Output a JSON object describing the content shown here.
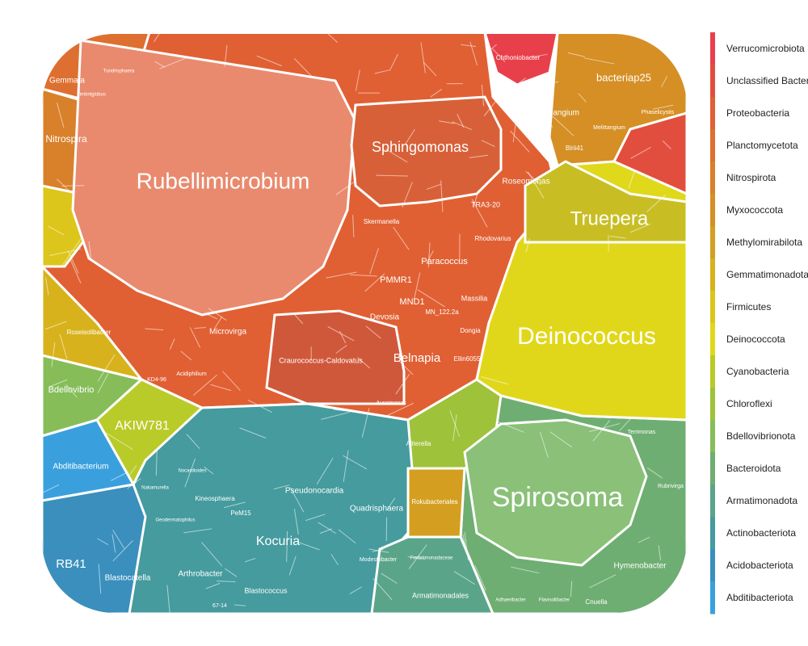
{
  "chart_data": {
    "type": "voronoi-treemap",
    "title": "",
    "phyla": [
      {
        "name": "Verrucomicrobiota",
        "color": "#e8404b"
      },
      {
        "name": "Unclassified Bacteria",
        "color": "#e24e3e"
      },
      {
        "name": "Proteobacteria",
        "color": "#e06033"
      },
      {
        "name": "Planctomycetota",
        "color": "#dd7030"
      },
      {
        "name": "Nitrospirota",
        "color": "#d9802a"
      },
      {
        "name": "Myxococcota",
        "color": "#d58f25"
      },
      {
        "name": "Methylomirabilota",
        "color": "#d49f20"
      },
      {
        "name": "Gemmatimonadota",
        "color": "#d8b21c"
      },
      {
        "name": "Firmicutes",
        "color": "#ddc61b"
      },
      {
        "name": "Deinococcota",
        "color": "#e0d81a"
      },
      {
        "name": "Cyanobacteria",
        "color": "#b9cb29"
      },
      {
        "name": "Chloroflexi",
        "color": "#9ec23a"
      },
      {
        "name": "Bdellovibrionota",
        "color": "#86bd59"
      },
      {
        "name": "Bacteroidota",
        "color": "#6fae72"
      },
      {
        "name": "Armatimonadota",
        "color": "#5aa58a"
      },
      {
        "name": "Actinobacteriota",
        "color": "#459b9e"
      },
      {
        "name": "Acidobacteriota",
        "color": "#3a8fbd"
      },
      {
        "name": "Abditibacteriota",
        "color": "#3aa0dd"
      }
    ],
    "labels": [
      {
        "text": "Rubellimicrobium",
        "size": 28
      },
      {
        "text": "Deinococcus",
        "size": 30
      },
      {
        "text": "Spirosoma",
        "size": 34
      },
      {
        "text": "Truepera",
        "size": 24
      },
      {
        "text": "Sphingomonas",
        "size": 18
      },
      {
        "text": "Kocuria",
        "size": 16
      },
      {
        "text": "AKIW781",
        "size": 16
      },
      {
        "text": "Belnapia",
        "size": 15
      },
      {
        "text": "bacteriap25",
        "size": 13
      },
      {
        "text": "Nitrospira",
        "size": 12
      },
      {
        "text": "RB41",
        "size": 15
      },
      {
        "text": "Bdellovibrio",
        "size": 11
      },
      {
        "text": "Abditibacterium",
        "size": 10
      },
      {
        "text": "Blastocatella",
        "size": 10
      },
      {
        "text": "Pseudonocardia",
        "size": 10
      },
      {
        "text": "Quadrisphaera",
        "size": 10
      },
      {
        "text": "Arthrobacter",
        "size": 10
      },
      {
        "text": "Blastococcus",
        "size": 9
      },
      {
        "text": "Paracoccus",
        "size": 11
      },
      {
        "text": "PMMR1",
        "size": 11
      },
      {
        "text": "MND1",
        "size": 11
      },
      {
        "text": "Devosia",
        "size": 10
      },
      {
        "text": "Microvirga",
        "size": 10
      },
      {
        "text": "Craurococcus-Caldovatus",
        "size": 9
      },
      {
        "text": "Roseomonas",
        "size": 10
      },
      {
        "text": "TRA3-20",
        "size": 9
      },
      {
        "text": "Massilia",
        "size": 9
      },
      {
        "text": "Dongia",
        "size": 8
      },
      {
        "text": "Ellin6055",
        "size": 8
      },
      {
        "text": "MN_122.2a",
        "size": 8
      },
      {
        "text": "Rhodovarius",
        "size": 8
      },
      {
        "text": "Skermanella",
        "size": 8
      },
      {
        "text": "Haliangium",
        "size": 10
      },
      {
        "text": "Chthoniobacter",
        "size": 8
      },
      {
        "text": "Gemmata",
        "size": 10
      },
      {
        "text": "Melittangium",
        "size": 7
      },
      {
        "text": "Blrii41",
        "size": 8
      },
      {
        "text": "Phaselicystis",
        "size": 7
      },
      {
        "text": "Hymenobacter",
        "size": 10
      },
      {
        "text": "Armatimonadales",
        "size": 9
      },
      {
        "text": "Rokubacteriales",
        "size": 8
      },
      {
        "text": "Roseisolibacter",
        "size": 8
      },
      {
        "text": "Aliterella",
        "size": 8
      },
      {
        "text": "Kineosphaera",
        "size": 8
      },
      {
        "text": "PeM15",
        "size": 8
      },
      {
        "text": "Modestobacter",
        "size": 7
      },
      {
        "text": "Nocardioides",
        "size": 6
      },
      {
        "text": "Acidiphilium",
        "size": 7
      },
      {
        "text": "Aureimonas",
        "size": 7
      },
      {
        "text": "Cnuella",
        "size": 8
      },
      {
        "text": "Terrimonas",
        "size": 7
      },
      {
        "text": "Rubrivirga",
        "size": 7
      },
      {
        "text": "KD4-96",
        "size": 7
      },
      {
        "text": "Geodermatophilus",
        "size": 6
      },
      {
        "text": "Nakamurella",
        "size": 6
      },
      {
        "text": "67-14",
        "size": 7
      },
      {
        "text": "Fimbriimonadaceae",
        "size": 6
      },
      {
        "text": "Adhaeribacter",
        "size": 6
      },
      {
        "text": "Flavisolibacter",
        "size": 6
      },
      {
        "text": "Tundrisphaera",
        "size": 6
      },
      {
        "text": "Fimbriiglobus",
        "size": 6
      }
    ]
  }
}
